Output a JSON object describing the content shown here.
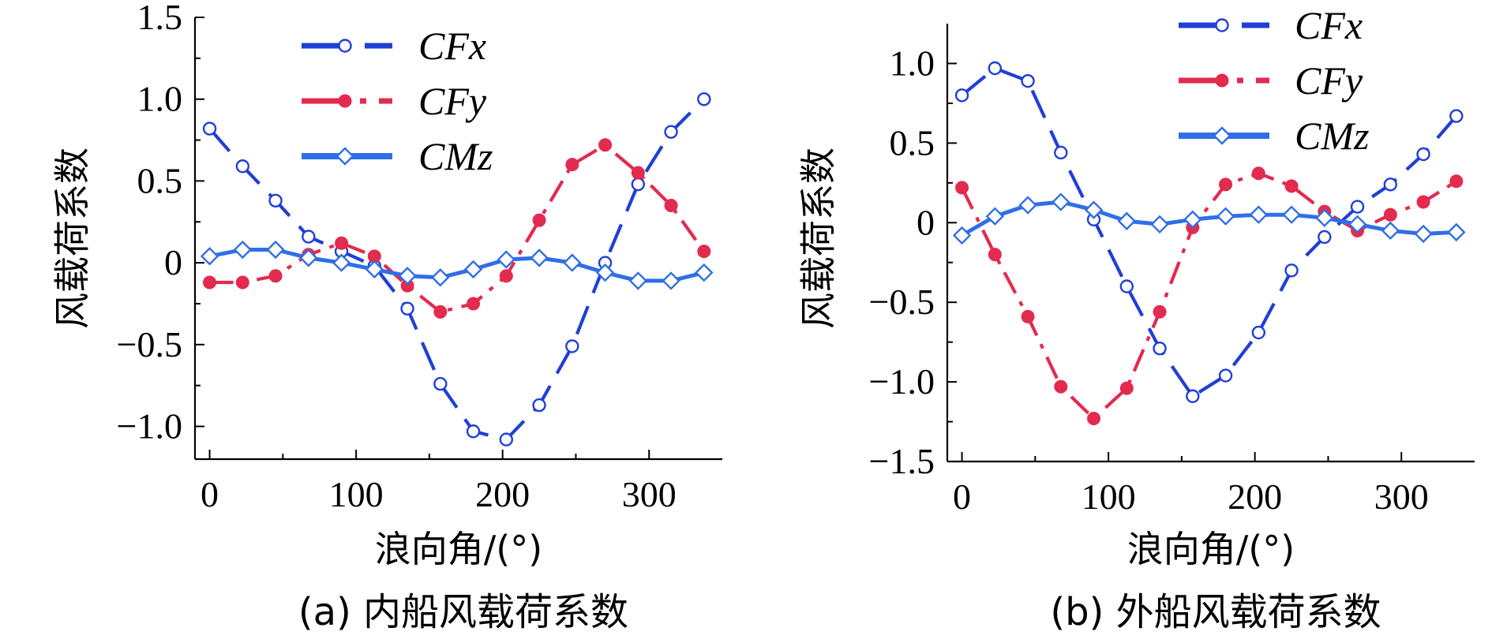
{
  "colors": {
    "CFx": "#1f3fd6",
    "CFy": "#e32a4f",
    "CMz": "#2f6fe6",
    "axis": "#000000"
  },
  "chart_data": [
    {
      "type": "line",
      "panel": "a",
      "title": "(a) 内船风载荷系数",
      "xlabel": "浪向角/(°)",
      "ylabel": "风载荷系数",
      "xlim": [
        -10,
        350
      ],
      "ylim": [
        -1.2,
        1.5
      ],
      "xticks": [
        0,
        100,
        200,
        300
      ],
      "xtick_labels": [
        "0",
        "100",
        "200",
        "300"
      ],
      "yticks": [
        1.5,
        1.0,
        0.5,
        0,
        -0.5,
        -1.0
      ],
      "ytick_labels": [
        "1.5",
        "1.0",
        "0.5",
        "0",
        "−0.5",
        "−1.0"
      ],
      "legend_position": "top-center",
      "x": [
        0,
        22.5,
        45,
        67.5,
        90,
        112.5,
        135,
        157.5,
        180,
        202.5,
        225,
        247.5,
        270,
        292.5,
        315,
        337.5
      ],
      "series": [
        {
          "name": "CFx",
          "style": "dashed",
          "marker": "open-circle",
          "values": [
            0.82,
            0.59,
            0.38,
            0.16,
            0.07,
            -0.02,
            -0.28,
            -0.74,
            -1.03,
            -1.08,
            -0.87,
            -0.51,
            0.0,
            0.48,
            0.8,
            1.0
          ]
        },
        {
          "name": "CFy",
          "style": "dashdot",
          "marker": "filled-circle",
          "values": [
            -0.12,
            -0.12,
            -0.08,
            0.05,
            0.12,
            0.04,
            -0.14,
            -0.3,
            -0.25,
            -0.08,
            0.26,
            0.6,
            0.72,
            0.55,
            0.35,
            0.07
          ]
        },
        {
          "name": "CMz",
          "style": "solid",
          "marker": "open-diamond",
          "values": [
            0.04,
            0.08,
            0.08,
            0.03,
            0.0,
            -0.04,
            -0.08,
            -0.09,
            -0.04,
            0.02,
            0.03,
            0.0,
            -0.06,
            -0.11,
            -0.11,
            -0.06
          ]
        }
      ]
    },
    {
      "type": "line",
      "panel": "b",
      "title": "(b) 外船风载荷系数",
      "xlabel": "浪向角/(°)",
      "ylabel": "风载荷系数",
      "xlim": [
        -10,
        350
      ],
      "ylim": [
        -1.5,
        1.25
      ],
      "xticks": [
        0,
        100,
        200,
        300
      ],
      "xtick_labels": [
        "0",
        "100",
        "200",
        "300"
      ],
      "yticks": [
        1.0,
        0.5,
        0,
        -0.5,
        -1.0,
        -1.5
      ],
      "ytick_labels": [
        "1.0",
        "0.5",
        "0",
        "−0.5",
        "−1.0",
        "−1.5"
      ],
      "legend_position": "top-right",
      "x": [
        0,
        22.5,
        45,
        67.5,
        90,
        112.5,
        135,
        157.5,
        180,
        202.5,
        225,
        247.5,
        270,
        292.5,
        315,
        337.5
      ],
      "series": [
        {
          "name": "CFx",
          "style": "dashed",
          "marker": "open-circle",
          "values": [
            0.8,
            0.97,
            0.89,
            0.44,
            0.02,
            -0.4,
            -0.79,
            -1.09,
            -0.96,
            -0.69,
            -0.3,
            -0.09,
            0.1,
            0.24,
            0.43,
            0.67
          ]
        },
        {
          "name": "CFy",
          "style": "dashdot",
          "marker": "filled-circle",
          "values": [
            0.22,
            -0.2,
            -0.59,
            -1.03,
            -1.23,
            -1.04,
            -0.56,
            -0.03,
            0.24,
            0.31,
            0.23,
            0.07,
            -0.05,
            0.05,
            0.13,
            0.26
          ]
        },
        {
          "name": "CMz",
          "style": "solid",
          "marker": "open-diamond",
          "values": [
            -0.08,
            0.04,
            0.11,
            0.13,
            0.08,
            0.01,
            -0.01,
            0.02,
            0.04,
            0.05,
            0.05,
            0.03,
            -0.01,
            -0.05,
            -0.07,
            -0.06
          ]
        }
      ]
    }
  ]
}
